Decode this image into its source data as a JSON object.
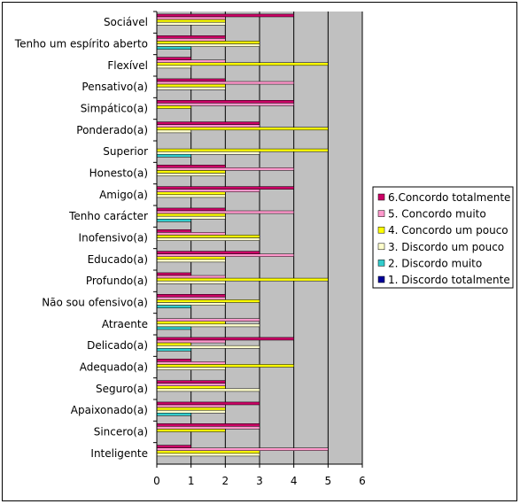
{
  "chart_data": {
    "type": "bar",
    "orientation": "horizontal",
    "categories": [
      "Sociável",
      "Tenho um espírito aberto",
      "Flexível",
      "Pensativo(a)",
      "Simpático(a)",
      "Ponderado(a)",
      "Superior",
      "Honesto(a)",
      "Amigo(a)",
      "Tenho carácter",
      "Inofensivo(a)",
      "Educado(a)",
      "Profundo(a)",
      "Não sou ofensivo(a)",
      "Atraente",
      "Delicado(a)",
      "Adequado(a)",
      "Seguro(a)",
      "Apaixonado(a)",
      "Sincero(a)",
      "Inteligente"
    ],
    "series": [
      {
        "name": "6.Concordo totalmente",
        "color": "#cc0066",
        "values": [
          4,
          2,
          1,
          2,
          4,
          3,
          0,
          2,
          4,
          2,
          1,
          3,
          1,
          2,
          0,
          4,
          1,
          2,
          3,
          3,
          1
        ]
      },
      {
        "name": "5. Concordo muito",
        "color": "#ff99cc",
        "values": [
          2,
          2,
          2,
          4,
          4,
          3,
          0,
          4,
          3,
          4,
          2,
          4,
          2,
          2,
          3,
          2,
          2,
          2,
          2,
          3,
          5
        ]
      },
      {
        "name": "4. Concordo um pouco",
        "color": "#ffff00",
        "values": [
          2,
          3,
          5,
          2,
          1,
          5,
          5,
          2,
          2,
          2,
          3,
          2,
          5,
          3,
          2,
          1,
          4,
          2,
          2,
          2,
          3
        ]
      },
      {
        "name": "3. Discordo um pouco",
        "color": "#ffffcc",
        "values": [
          2,
          3,
          1,
          2,
          0,
          1,
          3,
          2,
          2,
          2,
          3,
          2,
          2,
          2,
          3,
          3,
          2,
          3,
          2,
          0,
          3
        ]
      },
      {
        "name": "2. Discordo muito",
        "color": "#33cccc",
        "values": [
          0,
          1,
          0,
          0,
          0,
          0,
          1,
          0,
          0,
          1,
          0,
          0,
          0,
          1,
          1,
          1,
          0,
          0,
          1,
          0,
          0
        ]
      },
      {
        "name": "1. Discordo totalmente",
        "color": "#000099",
        "values": [
          0,
          0,
          0,
          0,
          0,
          0,
          0,
          0,
          0,
          0,
          0,
          0,
          0,
          0,
          0,
          0,
          0,
          0,
          0,
          0,
          0
        ]
      }
    ],
    "xlim": [
      0,
      6
    ],
    "xticks": [
      "0",
      "1",
      "2",
      "3",
      "4",
      "5",
      "6"
    ],
    "title": "",
    "xlabel": "",
    "ylabel": "",
    "grid": true,
    "legend": "right",
    "plot_background": "#c0c0c0"
  }
}
